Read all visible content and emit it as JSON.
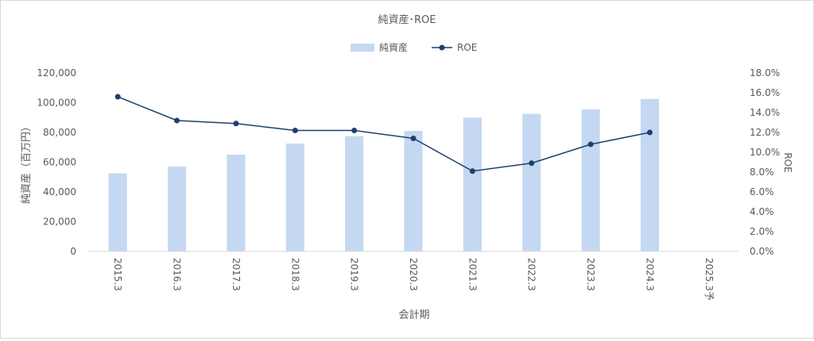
{
  "chart_data": {
    "type": "bar",
    "title": "純資産･ROE",
    "xlabel": "会計期",
    "ylabel": "純資産（百万円）",
    "y2label": "ROE",
    "categories": [
      "2015.3",
      "2016.3",
      "2017.3",
      "2018.3",
      "2019.3",
      "2020.3",
      "2021.3",
      "2022.3",
      "2023.3",
      "2024.3",
      "2025.3予"
    ],
    "series": [
      {
        "name": "純資産",
        "type": "bar",
        "axis": "left",
        "color": "#c5d8f1",
        "values": [
          52500,
          57000,
          65000,
          72500,
          77500,
          81000,
          90000,
          92500,
          95500,
          102500,
          null
        ]
      },
      {
        "name": "ROE",
        "type": "line",
        "axis": "right",
        "color": "#1f3f6e",
        "values": [
          15.6,
          13.2,
          12.9,
          12.2,
          12.2,
          11.4,
          8.1,
          8.9,
          10.8,
          12.0,
          null
        ]
      }
    ],
    "ylim": [
      0,
      120000
    ],
    "yticks": [
      "0",
      "20,000",
      "40,000",
      "60,000",
      "80,000",
      "100,000",
      "120,000"
    ],
    "y2lim": [
      0,
      18
    ],
    "y2ticks": [
      "0.0%",
      "2.0%",
      "4.0%",
      "6.0%",
      "8.0%",
      "10.0%",
      "12.0%",
      "14.0%",
      "16.0%",
      "18.0%"
    ],
    "legend": "top-center",
    "grid": false
  }
}
